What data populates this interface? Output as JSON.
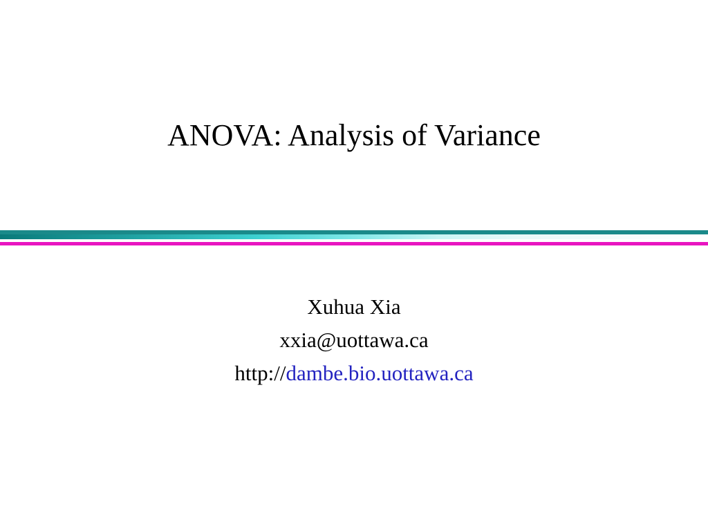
{
  "slide": {
    "title": "ANOVA: Analysis of Variance",
    "author": "Xuhua Xia",
    "email": "xxia@uottawa.ca",
    "url_prefix": "http://",
    "url_host": "dambe.bio.uottawa.ca"
  },
  "style": {
    "background_color": "#ffffff",
    "title_color": "#000000",
    "title_fontsize": 44,
    "body_fontsize": 31,
    "body_color": "#000000",
    "link_color": "#2323c0",
    "divider": {
      "teal_dark": "#1a8a8a",
      "magenta": "#e815c0",
      "gradient_stops": [
        "#0a7a7a",
        "#1fa0a0",
        "#3dd0d0",
        "#80e8e8",
        "#caf5f5",
        "#eaf8f8",
        "#ffffff"
      ]
    }
  }
}
